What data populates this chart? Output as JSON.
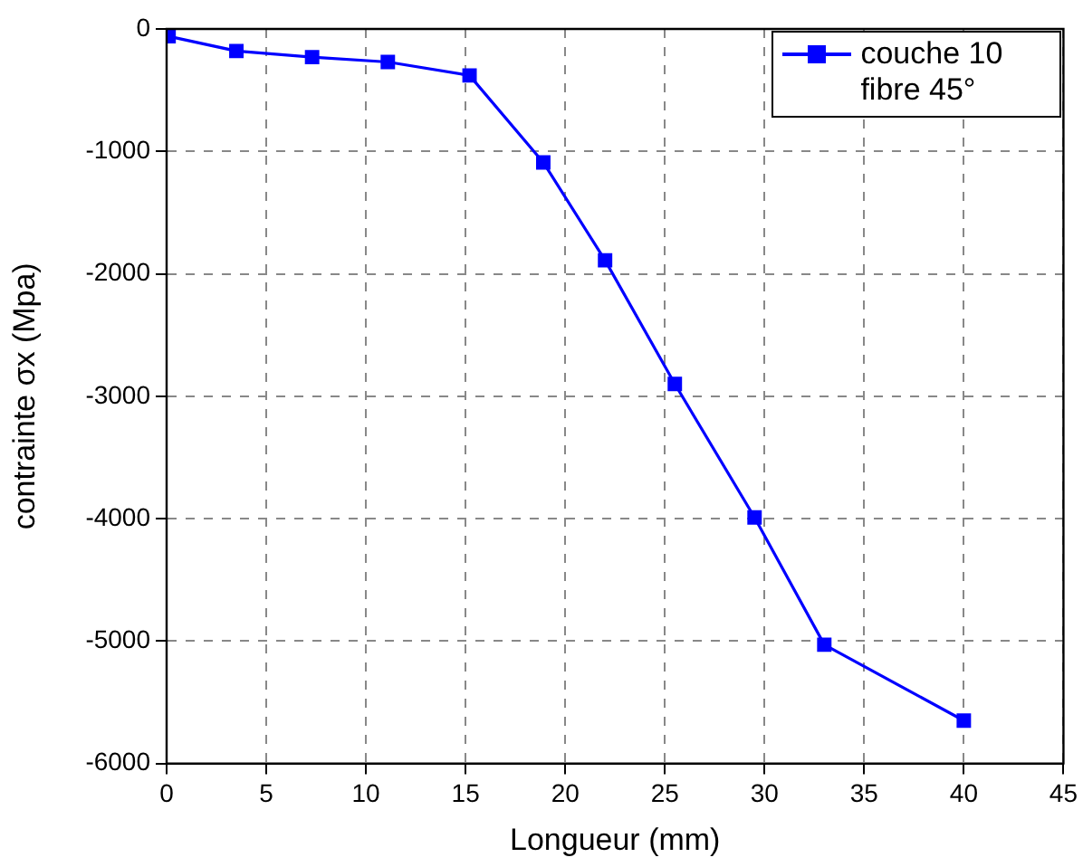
{
  "chart_data": {
    "type": "line",
    "xlabel": "Longueur (mm)",
    "ylabel": "contrainte σx (Mpa)",
    "x": [
      0.1,
      3.5,
      7.3,
      11.1,
      15.2,
      18.9,
      22,
      25.5,
      29.5,
      33,
      40
    ],
    "series": [
      {
        "name": "couche 10 fibre 45°",
        "color": "#0000ff",
        "values": [
          -60,
          -180,
          -230,
          -270,
          -380,
          -1090,
          -1890,
          -2900,
          -3990,
          -5030,
          -5650
        ]
      }
    ],
    "xlim": [
      0,
      45
    ],
    "xticks": [
      0,
      5,
      10,
      15,
      20,
      25,
      30,
      35,
      40,
      45
    ],
    "ylim": [
      -6000,
      0
    ],
    "yticks": [
      -6000,
      -5000,
      -4000,
      -3000,
      -2000,
      -1000,
      0
    ],
    "grid": true,
    "legend": "top right",
    "marker": "square",
    "line_style": "solid"
  }
}
